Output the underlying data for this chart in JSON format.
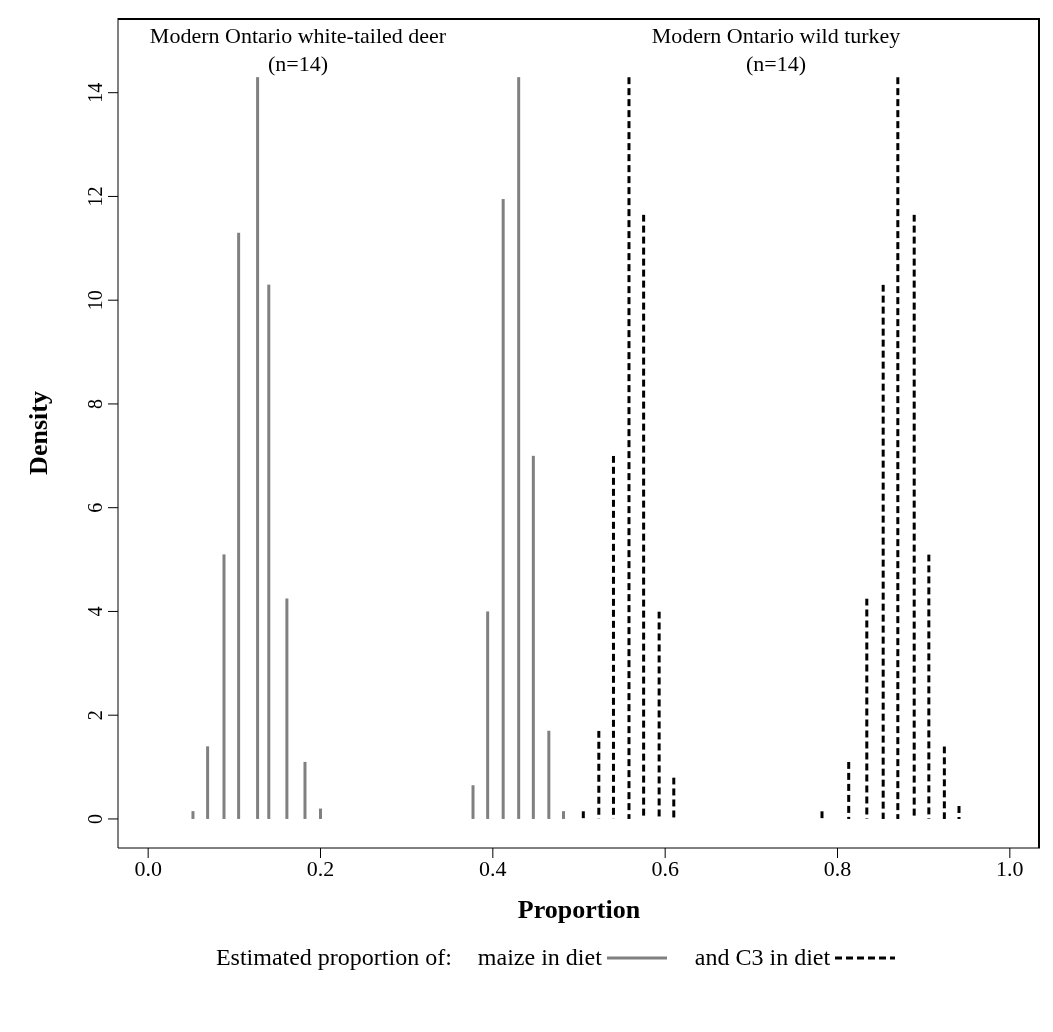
{
  "chart_data": {
    "type": "bar",
    "xlabel": "Proportion",
    "ylabel": "Density",
    "legend_title": "Estimated proportion of:",
    "annotations": [
      "Modern Ontario white-tailed deer\n(n=14)",
      "Modern Ontario wild turkey\n(n=14)"
    ],
    "series": [
      {
        "name": "maize in diet",
        "color": "#808080",
        "line_style": "solid",
        "x": [
          0.052,
          0.069,
          0.088,
          0.105,
          0.127,
          0.14,
          0.161,
          0.182,
          0.2,
          0.377,
          0.394,
          0.412,
          0.43,
          0.447,
          0.465,
          0.482
        ],
        "values": [
          0.15,
          1.4,
          5.1,
          11.3,
          14.3,
          10.3,
          4.25,
          1.1,
          0.2,
          0.65,
          4.0,
          11.95,
          14.3,
          7.0,
          1.7,
          0.15
        ]
      },
      {
        "name": "and C3 in diet",
        "color": "#000000",
        "line_style": "dashed",
        "x": [
          0.505,
          0.523,
          0.54,
          0.558,
          0.575,
          0.593,
          0.61,
          0.782,
          0.813,
          0.834,
          0.853,
          0.87,
          0.889,
          0.906,
          0.924,
          0.941
        ],
        "values": [
          0.15,
          1.7,
          7.0,
          14.3,
          11.65,
          4.0,
          0.8,
          0.15,
          1.1,
          4.25,
          10.3,
          14.3,
          11.65,
          5.1,
          1.4,
          0.25
        ]
      }
    ],
    "legend": "bottom",
    "grid": false,
    "xlim": [
      -0.035,
      1.035
    ],
    "xticks": [
      {
        "value": 0,
        "label": "0.0"
      },
      0.2,
      0.4,
      0.6,
      0.8,
      {
        "value": 1,
        "label": "1.0"
      }
    ],
    "ylim": [
      -0.56,
      15.44
    ],
    "yticks": [
      0,
      2,
      4,
      6,
      8,
      10,
      12,
      14
    ]
  }
}
